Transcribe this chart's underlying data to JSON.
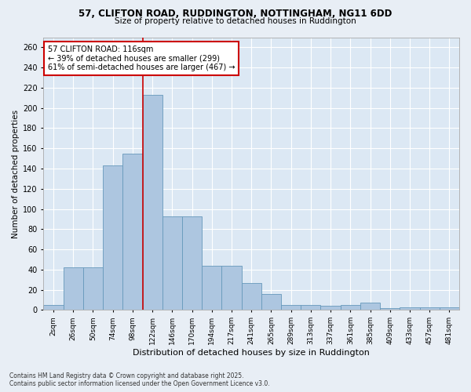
{
  "title_line1": "57, CLIFTON ROAD, RUDDINGTON, NOTTINGHAM, NG11 6DD",
  "title_line2": "Size of property relative to detached houses in Ruddington",
  "xlabel": "Distribution of detached houses by size in Ruddington",
  "ylabel": "Number of detached properties",
  "categories": [
    "2sqm",
    "26sqm",
    "50sqm",
    "74sqm",
    "98sqm",
    "122sqm",
    "146sqm",
    "170sqm",
    "194sqm",
    "217sqm",
    "241sqm",
    "265sqm",
    "289sqm",
    "313sqm",
    "337sqm",
    "361sqm",
    "385sqm",
    "409sqm",
    "433sqm",
    "457sqm",
    "481sqm"
  ],
  "values": [
    5,
    42,
    42,
    143,
    155,
    213,
    93,
    93,
    44,
    44,
    27,
    16,
    5,
    5,
    4,
    5,
    7,
    2,
    3,
    3,
    3
  ],
  "bar_color": "#adc6e0",
  "bar_edge_color": "#6699bb",
  "vline_color": "#cc0000",
  "annotation_text": "57 CLIFTON ROAD: 116sqm\n← 39% of detached houses are smaller (299)\n61% of semi-detached houses are larger (467) →",
  "annotation_box_color": "#ffffff",
  "annotation_box_edge": "#cc0000",
  "ylim": [
    0,
    270
  ],
  "yticks": [
    0,
    20,
    40,
    60,
    80,
    100,
    120,
    140,
    160,
    180,
    200,
    220,
    240,
    260
  ],
  "background_color": "#dce8f4",
  "grid_color": "#ffffff",
  "fig_background": "#e8eef5",
  "footer_line1": "Contains HM Land Registry data © Crown copyright and database right 2025.",
  "footer_line2": "Contains public sector information licensed under the Open Government Licence v3.0."
}
